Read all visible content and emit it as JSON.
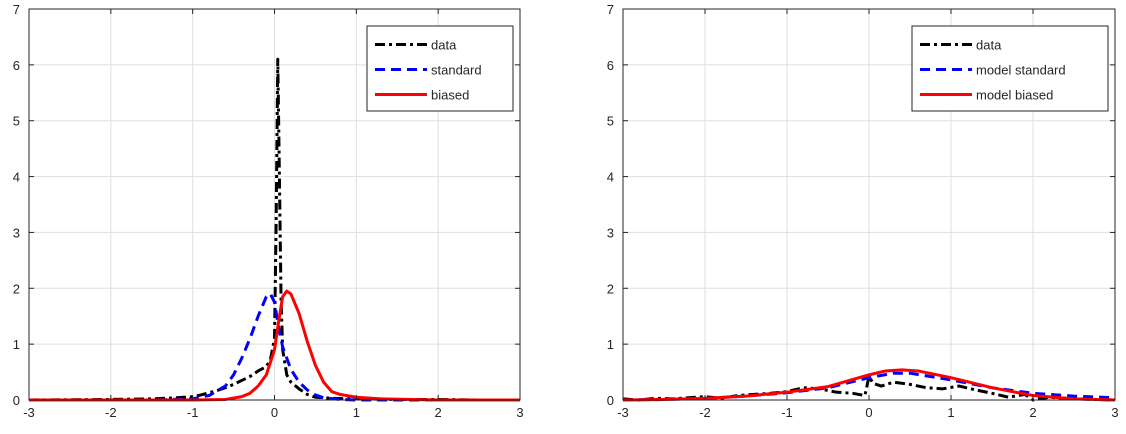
{
  "chart_data": [
    {
      "type": "line",
      "title": "",
      "xlabel": "",
      "ylabel": "",
      "xlim": [
        -3,
        3
      ],
      "ylim": [
        0,
        7
      ],
      "xticks": [
        -3,
        -2,
        -1,
        0,
        1,
        2,
        3
      ],
      "yticks": [
        0,
        1,
        2,
        3,
        4,
        5,
        6,
        7
      ],
      "grid": true,
      "legend": "top-right",
      "series": [
        {
          "name": "data",
          "color": "#000000",
          "style": "dashdot",
          "x": [
            -3.0,
            -2.0,
            -1.5,
            -1.2,
            -1.0,
            -0.9,
            -0.8,
            -0.7,
            -0.6,
            -0.5,
            -0.4,
            -0.3,
            -0.2,
            -0.1,
            -0.05,
            0.0,
            0.02,
            0.04,
            0.06,
            0.08,
            0.1,
            0.15,
            0.2,
            0.3,
            0.4,
            0.5,
            0.7,
            1.0,
            1.5,
            2.0,
            2.5,
            3.0
          ],
          "y": [
            0.0,
            0.01,
            0.02,
            0.04,
            0.06,
            0.09,
            0.13,
            0.17,
            0.22,
            0.28,
            0.35,
            0.42,
            0.52,
            0.6,
            0.72,
            1.1,
            3.2,
            6.1,
            4.0,
            1.8,
            0.9,
            0.45,
            0.32,
            0.2,
            0.1,
            0.05,
            0.03,
            0.02,
            0.01,
            0.01,
            0.0,
            0.0
          ]
        },
        {
          "name": "standard",
          "color": "#0000ff",
          "style": "dashed",
          "x": [
            -3.0,
            -1.5,
            -1.0,
            -0.8,
            -0.6,
            -0.5,
            -0.4,
            -0.3,
            -0.2,
            -0.1,
            -0.05,
            0.0,
            0.05,
            0.1,
            0.2,
            0.3,
            0.4,
            0.5,
            0.6,
            0.8,
            1.0,
            1.5,
            3.0
          ],
          "y": [
            0.0,
            0.0,
            0.02,
            0.08,
            0.25,
            0.45,
            0.75,
            1.1,
            1.5,
            1.85,
            1.9,
            1.75,
            1.3,
            0.95,
            0.55,
            0.32,
            0.18,
            0.09,
            0.04,
            0.01,
            0.0,
            0.0,
            0.0
          ]
        },
        {
          "name": "biased",
          "color": "#ff0000",
          "style": "solid",
          "x": [
            -3.0,
            -1.0,
            -0.6,
            -0.4,
            -0.3,
            -0.2,
            -0.1,
            0.0,
            0.05,
            0.1,
            0.15,
            0.2,
            0.3,
            0.4,
            0.5,
            0.6,
            0.7,
            0.8,
            1.0,
            1.3,
            2.0,
            3.0
          ],
          "y": [
            0.0,
            0.0,
            0.01,
            0.06,
            0.12,
            0.25,
            0.45,
            0.9,
            1.4,
            1.85,
            1.95,
            1.9,
            1.55,
            1.05,
            0.62,
            0.32,
            0.15,
            0.1,
            0.05,
            0.02,
            0.0,
            0.0
          ]
        }
      ]
    },
    {
      "type": "line",
      "title": "",
      "xlabel": "",
      "ylabel": "",
      "xlim": [
        -3,
        3
      ],
      "ylim": [
        0,
        7
      ],
      "xticks": [
        -3,
        -2,
        -1,
        0,
        1,
        2,
        3
      ],
      "yticks": [
        0,
        1,
        2,
        3,
        4,
        5,
        6,
        7
      ],
      "grid": true,
      "legend": "top-right",
      "series": [
        {
          "name": "data",
          "color": "#000000",
          "style": "dashdot",
          "x": [
            -3.0,
            -2.8,
            -2.6,
            -2.4,
            -2.2,
            -2.0,
            -1.8,
            -1.6,
            -1.4,
            -1.2,
            -1.0,
            -0.8,
            -0.6,
            -0.4,
            -0.2,
            -0.05,
            0.0,
            0.05,
            0.15,
            0.3,
            0.5,
            0.7,
            0.9,
            1.1,
            1.3,
            1.5,
            1.7,
            1.9,
            2.0,
            2.2,
            2.5,
            3.0
          ],
          "y": [
            0.02,
            0.0,
            0.03,
            0.02,
            0.04,
            0.06,
            0.03,
            0.08,
            0.1,
            0.12,
            0.15,
            0.22,
            0.2,
            0.14,
            0.12,
            0.08,
            0.42,
            0.3,
            0.25,
            0.32,
            0.28,
            0.22,
            0.2,
            0.25,
            0.18,
            0.12,
            0.05,
            0.1,
            0.0,
            0.05,
            0.02,
            0.0
          ]
        },
        {
          "name": "model standard",
          "color": "#0000ff",
          "style": "dashed",
          "x": [
            -3.0,
            -2.5,
            -2.0,
            -1.5,
            -1.0,
            -0.5,
            0.0,
            0.3,
            0.5,
            1.0,
            1.5,
            2.0,
            2.5,
            3.0
          ],
          "y": [
            0.0,
            0.01,
            0.03,
            0.07,
            0.13,
            0.22,
            0.4,
            0.48,
            0.48,
            0.36,
            0.22,
            0.12,
            0.07,
            0.04
          ]
        },
        {
          "name": "model biased",
          "color": "#ff0000",
          "style": "solid",
          "x": [
            -3.0,
            -2.5,
            -2.0,
            -1.5,
            -1.0,
            -0.5,
            0.0,
            0.2,
            0.4,
            0.6,
            1.0,
            1.5,
            2.0,
            2.5,
            3.0
          ],
          "y": [
            0.0,
            0.01,
            0.03,
            0.07,
            0.14,
            0.24,
            0.45,
            0.52,
            0.54,
            0.52,
            0.4,
            0.22,
            0.08,
            0.02,
            0.0
          ]
        }
      ]
    }
  ]
}
